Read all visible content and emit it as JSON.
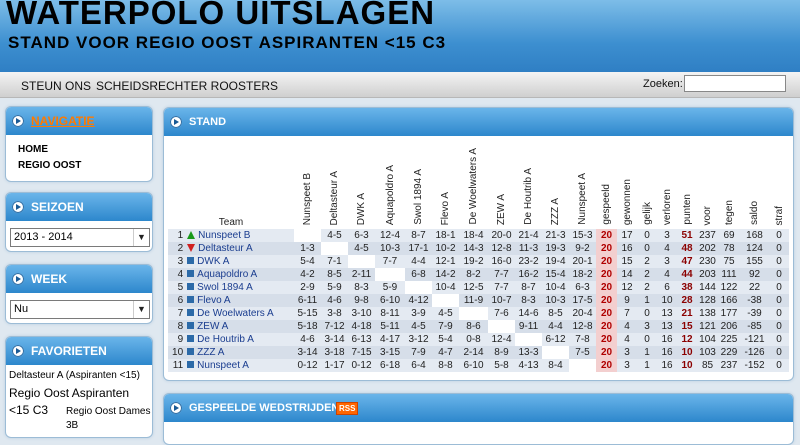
{
  "header": {
    "title": "WATERPOLO UITSLAGEN",
    "subtitle": "STAND VOOR REGIO OOST ASPIRANTEN <15 C3"
  },
  "menu": {
    "items": [
      "STEUN ONS",
      "SCHEIDSRECHTER ROOSTERS"
    ],
    "search_label": "Zoeken:",
    "search_value": ""
  },
  "sidebar": {
    "navigatie": {
      "title": "NAVIGATIE",
      "links": [
        "HOME",
        "REGIO OOST"
      ]
    },
    "seizoen": {
      "title": "SEIZOEN",
      "selected": "2013 - 2014"
    },
    "week": {
      "title": "WEEK",
      "selected": "Nu"
    },
    "favorieten": {
      "title": "FAVORIETEN",
      "items": [
        "Deltasteur A (Aspiranten <15)",
        "Regio Oost Aspiranten <15 C3",
        "Regio Oost Dames 3B"
      ]
    }
  },
  "stand": {
    "title": "STAND",
    "team_header": "Team",
    "opp_headers": [
      "Nunspeet B",
      "Deltasteur A",
      "DWK A",
      "Aquapoldro A",
      "Swol 1894 A",
      "Flevo A",
      "De Woelwaters A",
      "ZEW A",
      "De Houtrib A",
      "ZZZ A",
      "Nunspeet A"
    ],
    "stat_headers": [
      "gespeeld",
      "gewonnen",
      "gelijk",
      "verloren",
      "punten",
      "voor",
      "tegen",
      "saldo",
      "straf"
    ],
    "rows": [
      {
        "pos": "1",
        "trend": "up",
        "team": "Nunspeet B",
        "res": [
          "",
          "4-5",
          "6-3",
          "12-4",
          "8-7",
          "18-1",
          "18-4",
          "20-0",
          "21-4",
          "21-3",
          "15-3"
        ],
        "stats": [
          "20",
          "17",
          "0",
          "3",
          "51",
          "237",
          "69",
          "168",
          "0"
        ]
      },
      {
        "pos": "2",
        "trend": "down",
        "team": "Deltasteur A",
        "res": [
          "1-3",
          "",
          "4-5",
          "10-3",
          "17-1",
          "10-2",
          "14-3",
          "12-8",
          "11-3",
          "19-3",
          "9-2"
        ],
        "stats": [
          "20",
          "16",
          "0",
          "4",
          "48",
          "202",
          "78",
          "124",
          "0"
        ]
      },
      {
        "pos": "3",
        "trend": "eq",
        "team": "DWK A",
        "res": [
          "5-4",
          "7-1",
          "",
          "7-7",
          "4-4",
          "12-1",
          "19-2",
          "16-0",
          "23-2",
          "19-4",
          "20-1"
        ],
        "stats": [
          "20",
          "15",
          "2",
          "3",
          "47",
          "230",
          "75",
          "155",
          "0"
        ]
      },
      {
        "pos": "4",
        "trend": "eq",
        "team": "Aquapoldro A",
        "res": [
          "4-2",
          "8-5",
          "2-11",
          "",
          "6-8",
          "14-2",
          "8-2",
          "7-7",
          "16-2",
          "15-4",
          "18-2"
        ],
        "stats": [
          "20",
          "14",
          "2",
          "4",
          "44",
          "203",
          "111",
          "92",
          "0"
        ]
      },
      {
        "pos": "5",
        "trend": "eq",
        "team": "Swol 1894 A",
        "res": [
          "2-9",
          "5-9",
          "8-3",
          "5-9",
          "",
          "10-4",
          "12-5",
          "7-7",
          "8-7",
          "10-4",
          "6-3"
        ],
        "stats": [
          "20",
          "12",
          "2",
          "6",
          "38",
          "144",
          "122",
          "22",
          "0"
        ]
      },
      {
        "pos": "6",
        "trend": "eq",
        "team": "Flevo A",
        "res": [
          "6-11",
          "4-6",
          "9-8",
          "6-10",
          "4-12",
          "",
          "11-9",
          "10-7",
          "8-3",
          "10-3",
          "17-5"
        ],
        "stats": [
          "20",
          "9",
          "1",
          "10",
          "28",
          "128",
          "166",
          "-38",
          "0"
        ]
      },
      {
        "pos": "7",
        "trend": "eq",
        "team": "De Woelwaters A",
        "res": [
          "5-15",
          "3-8",
          "3-10",
          "8-11",
          "3-9",
          "4-5",
          "",
          "7-6",
          "14-6",
          "8-5",
          "20-4"
        ],
        "stats": [
          "20",
          "7",
          "0",
          "13",
          "21",
          "138",
          "177",
          "-39",
          "0"
        ]
      },
      {
        "pos": "8",
        "trend": "eq",
        "team": "ZEW A",
        "res": [
          "5-18",
          "7-12",
          "4-18",
          "5-11",
          "4-5",
          "7-9",
          "8-6",
          "",
          "9-11",
          "4-4",
          "12-8"
        ],
        "stats": [
          "20",
          "4",
          "3",
          "13",
          "15",
          "121",
          "206",
          "-85",
          "0"
        ]
      },
      {
        "pos": "9",
        "trend": "eq",
        "team": "De Houtrib A",
        "res": [
          "4-6",
          "3-14",
          "6-13",
          "4-17",
          "3-12",
          "5-4",
          "0-8",
          "12-4",
          "",
          "6-12",
          "7-8"
        ],
        "stats": [
          "20",
          "4",
          "0",
          "16",
          "12",
          "104",
          "225",
          "-121",
          "0"
        ]
      },
      {
        "pos": "10",
        "trend": "eq",
        "team": "ZZZ A",
        "res": [
          "3-14",
          "3-18",
          "7-15",
          "3-15",
          "7-9",
          "4-7",
          "2-14",
          "8-9",
          "13-3",
          "",
          "7-5"
        ],
        "stats": [
          "20",
          "3",
          "1",
          "16",
          "10",
          "103",
          "229",
          "-126",
          "0"
        ]
      },
      {
        "pos": "11",
        "trend": "eq",
        "team": "Nunspeet A",
        "res": [
          "0-12",
          "1-17",
          "0-12",
          "6-18",
          "6-4",
          "8-8",
          "6-10",
          "5-8",
          "4-13",
          "8-4",
          ""
        ],
        "stats": [
          "20",
          "3",
          "1",
          "16",
          "10",
          "85",
          "237",
          "-152",
          "0"
        ]
      }
    ]
  },
  "gespeelde": {
    "title": "GESPEELDE WEDSTRIJDEN",
    "rss_label": "RSS"
  },
  "colors": {
    "header_top": "#7dbde8",
    "header_bottom": "#2f7fc4",
    "accent_orange": "#ff7a00",
    "link_blue": "#1a3d8f"
  }
}
